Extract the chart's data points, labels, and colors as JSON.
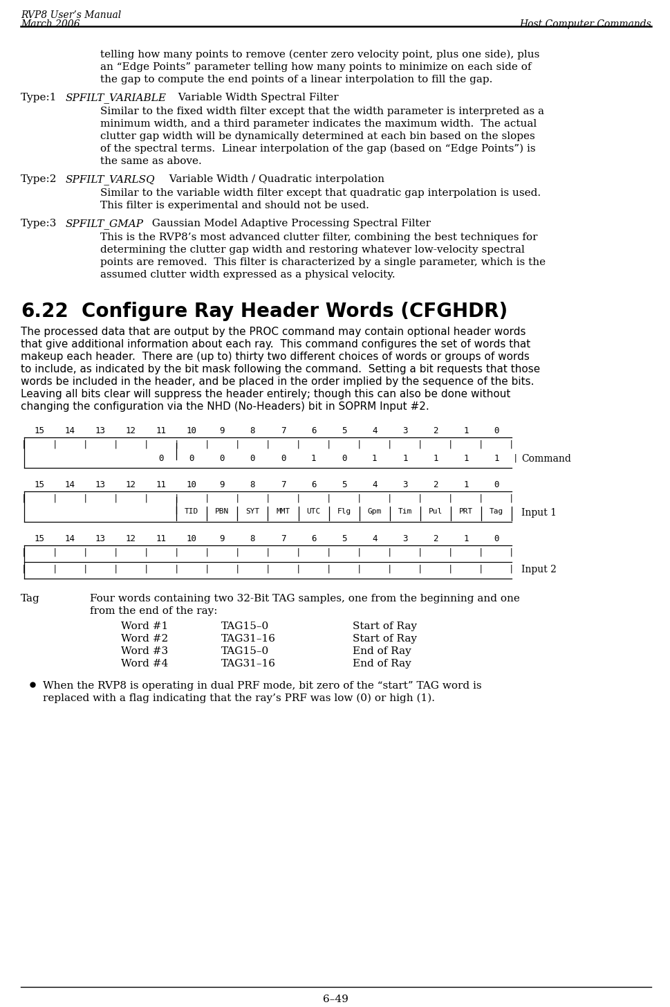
{
  "header_left1": "RVP8 User’s Manual",
  "header_left2": "March 2006",
  "header_right": "Host Computer Commands",
  "footer": "6–49",
  "bg_color": "#ffffff",
  "text_color": "#000000",
  "para_indent_text": "telling how many points to remove (center zero velocity point, plus one side), plus\nan “Edge Points” parameter telling how many points to minimize on each side of\nthe gap to compute the end points of a linear interpolation to fill the gap.",
  "type1_label": "Type:1",
  "type1_name": "SPFILT_VARIABLE",
  "type1_title": "Variable Width Spectral Filter",
  "type1_body": "Similar to the fixed width filter except that the width parameter is interpreted as a\nminimum width, and a third parameter indicates the maximum width.  The actual\nclutter gap width will be dynamically determined at each bin based on the slopes\nof the spectral terms.  Linear interpolation of the gap (based on “Edge Points”) is\nthe same as above.",
  "type2_label": "Type:2",
  "type2_name": "SPFILT_VARLSQ",
  "type2_title": "Variable Width / Quadratic interpolation",
  "type2_body": "Similar to the variable width filter except that quadratic gap interpolation is used.\nThis filter is experimental and should not be used.",
  "type3_label": "Type:3",
  "type3_name": "SPFILT_GMAP",
  "type3_title": "Gaussian Model Adaptive Processing Spectral Filter",
  "type3_body": "This is the RVP8’s most advanced clutter filter, combining the best techniques for\ndetermining the clutter gap width and restoring whatever low-velocity spectral\npoints are removed.  This filter is characterized by a single parameter, which is the\nassumed clutter width expressed as a physical velocity.",
  "section_num": "6.22",
  "section_title": "Configure Ray Header Words (CFGHDR)",
  "section_body1": "The processed data that are output by the PROC command may contain optional header words",
  "section_body2": "that give additional information about each ray.  This command configures the set of words that",
  "section_body3": "makeup each header.  There are (up to) thirty two different choices of words or groups of words",
  "section_body4": "to include, as indicated by the bit mask following the command.  Setting a bit requests that those",
  "section_body5": "words be included in the header, and be placed in the order implied by the sequence of the bits.",
  "section_body6": "Leaving all bits clear will suppress the header entirely; though this can also be done without",
  "section_body7": "changing the configuration via the NHD (No-Headers) bit in SOPRM Input #2.",
  "bit_labels": [
    "15",
    "14",
    "13",
    "12",
    "11",
    "10",
    "9",
    "8",
    "7",
    "6",
    "5",
    "4",
    "3",
    "2",
    "1",
    "0"
  ],
  "cmd_vals": [
    "0",
    "0",
    "0",
    "0",
    "0",
    "1",
    "0",
    "1",
    "1",
    "1",
    "1",
    "1"
  ],
  "input1_labels": [
    "TID",
    "PBN",
    "SYT",
    "MMT",
    "UTC",
    "Flg",
    "Gpm",
    "Tim",
    "Pul",
    "PRT",
    "Tag"
  ],
  "word_rows": [
    [
      "Word #1",
      "TAG15–0",
      "Start of Ray"
    ],
    [
      "Word #2",
      "TAG31–16",
      "Start of Ray"
    ],
    [
      "Word #3",
      "TAG15–0",
      "End of Ray"
    ],
    [
      "Word #4",
      "TAG31–16",
      "End of Ray"
    ]
  ],
  "bullet_text1": "When the RVP8 is operating in dual PRF mode, bit zero of the “start” TAG word is",
  "bullet_text2": "replaced with a flag indicating that the ray’s PRF was low (0) or high (1)."
}
